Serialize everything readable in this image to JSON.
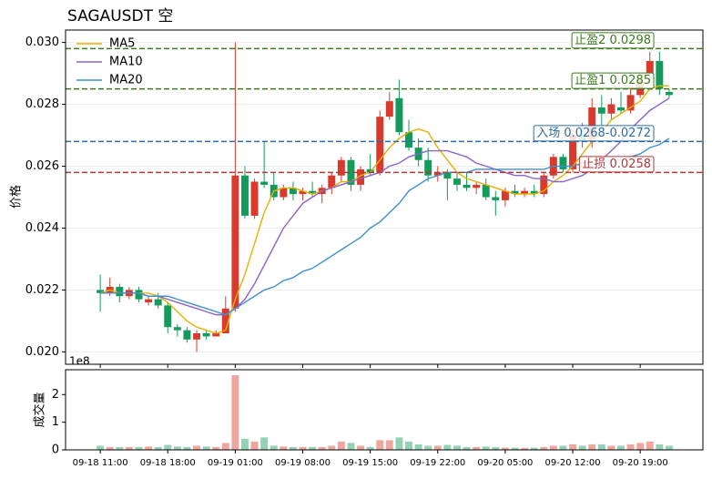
{
  "chart_data": [
    {
      "type": "candlestick",
      "title": "SAGAUSDT  空",
      "ylabel": "价格",
      "up_color": "#d93a2b",
      "down_color": "#149a5a",
      "grid": true,
      "legend": "upper left",
      "xlim": [
        -3.6,
        62.5
      ],
      "ylim": [
        0.0196,
        0.0304
      ],
      "yticks": [
        {
          "value": 0.02,
          "label": "0.020"
        },
        0.022,
        0.024,
        0.026,
        0.028,
        {
          "value": 0.03,
          "label": "0.030"
        }
      ],
      "open": [
        0.022,
        0.0219,
        0.0221,
        0.0218,
        0.022,
        0.0216,
        0.0217,
        0.0215,
        0.0208,
        0.0207,
        0.0204,
        0.0206,
        0.0205,
        0.0206,
        0.0214,
        0.0257,
        0.0244,
        0.0255,
        0.0254,
        0.025,
        0.0253,
        0.0251,
        0.0252,
        0.0251,
        0.0253,
        0.0257,
        0.0262,
        0.0254,
        0.0259,
        0.0258,
        0.0276,
        0.0282,
        0.0271,
        0.0266,
        0.0262,
        0.0257,
        0.0258,
        0.0256,
        0.0254,
        0.0253,
        0.0254,
        0.025,
        0.0249,
        0.0252,
        0.0251,
        0.0252,
        0.0251,
        0.0257,
        0.0263,
        0.0259,
        0.027,
        0.0268,
        0.0279,
        0.0277,
        0.0279,
        0.0278,
        0.0283,
        0.029,
        0.0294,
        0.0284
      ],
      "high": [
        0.0225,
        0.0224,
        0.0222,
        0.0221,
        0.0221,
        0.0218,
        0.0219,
        0.0216,
        0.0209,
        0.0208,
        0.0207,
        0.0207,
        0.0207,
        0.0218,
        0.03,
        0.026,
        0.0256,
        0.0268,
        0.0258,
        0.0254,
        0.0255,
        0.0253,
        0.0255,
        0.0254,
        0.0258,
        0.0263,
        0.0263,
        0.026,
        0.0264,
        0.0278,
        0.0284,
        0.0288,
        0.0275,
        0.0269,
        0.0266,
        0.026,
        0.0259,
        0.0258,
        0.0258,
        0.0255,
        0.0256,
        0.0252,
        0.0253,
        0.0254,
        0.0253,
        0.0254,
        0.0258,
        0.0264,
        0.0264,
        0.0272,
        0.0274,
        0.0282,
        0.0283,
        0.0282,
        0.0284,
        0.0285,
        0.0289,
        0.0297,
        0.0297,
        0.0285
      ],
      "low": [
        0.0213,
        0.0218,
        0.0216,
        0.0217,
        0.0216,
        0.0215,
        0.0214,
        0.0206,
        0.0205,
        0.0203,
        0.02,
        0.0204,
        0.0205,
        0.0206,
        0.0213,
        0.0243,
        0.0243,
        0.0253,
        0.0249,
        0.0249,
        0.0249,
        0.0249,
        0.025,
        0.0248,
        0.0251,
        0.0255,
        0.0252,
        0.0252,
        0.0257,
        0.0257,
        0.0275,
        0.027,
        0.0265,
        0.026,
        0.0255,
        0.0255,
        0.0249,
        0.0252,
        0.0252,
        0.0251,
        0.0249,
        0.0244,
        0.0247,
        0.025,
        0.025,
        0.025,
        0.025,
        0.0256,
        0.0258,
        0.0258,
        0.0266,
        0.0266,
        0.0273,
        0.0275,
        0.0277,
        0.0277,
        0.0282,
        0.0287,
        0.0283,
        0.0282
      ],
      "close": [
        0.0219,
        0.0221,
        0.0218,
        0.022,
        0.0217,
        0.0217,
        0.0215,
        0.0208,
        0.0207,
        0.0204,
        0.0206,
        0.0205,
        0.0206,
        0.0214,
        0.0257,
        0.0244,
        0.0255,
        0.0254,
        0.025,
        0.0253,
        0.0251,
        0.0252,
        0.0251,
        0.0253,
        0.0257,
        0.0262,
        0.0254,
        0.0259,
        0.0258,
        0.0276,
        0.0281,
        0.0271,
        0.0266,
        0.0262,
        0.0257,
        0.0258,
        0.0256,
        0.0254,
        0.0253,
        0.0254,
        0.025,
        0.0249,
        0.0252,
        0.0251,
        0.0252,
        0.0251,
        0.0257,
        0.0263,
        0.0259,
        0.027,
        0.0268,
        0.0279,
        0.0277,
        0.028,
        0.0278,
        0.0283,
        0.0288,
        0.0294,
        0.0285,
        0.0283
      ],
      "series": [
        {
          "name": "MA5",
          "color": "#e6b000",
          "values": [
            0.0219,
            0.022,
            0.0219,
            0.0219,
            0.0219,
            0.0219,
            0.0218,
            0.0216,
            0.0213,
            0.021,
            0.0208,
            0.0207,
            0.0206,
            0.0207,
            0.0217,
            0.0225,
            0.0235,
            0.0245,
            0.0252,
            0.0253,
            0.0253,
            0.0252,
            0.0251,
            0.0252,
            0.0253,
            0.0255,
            0.0255,
            0.0257,
            0.0258,
            0.0262,
            0.0266,
            0.0269,
            0.0271,
            0.0272,
            0.0271,
            0.0266,
            0.0262,
            0.0258,
            0.0256,
            0.0255,
            0.0254,
            0.0253,
            0.0252,
            0.0251,
            0.0251,
            0.0251,
            0.0252,
            0.0255,
            0.0257,
            0.026,
            0.0264,
            0.0268,
            0.0271,
            0.0275,
            0.0277,
            0.0279,
            0.0281,
            0.0285,
            0.0286,
            0.0286
          ]
        },
        {
          "name": "MA10",
          "color": "#8a63c9",
          "values": [
            0.0219,
            0.0219,
            0.0219,
            0.0219,
            0.0219,
            0.0218,
            0.0218,
            0.0217,
            0.0216,
            0.0215,
            0.0214,
            0.0213,
            0.0212,
            0.0212,
            0.0214,
            0.0217,
            0.0222,
            0.0228,
            0.0234,
            0.024,
            0.0244,
            0.0248,
            0.025,
            0.0252,
            0.0253,
            0.0254,
            0.0255,
            0.0256,
            0.0257,
            0.0258,
            0.026,
            0.0261,
            0.0263,
            0.0264,
            0.0265,
            0.0265,
            0.0265,
            0.0264,
            0.0263,
            0.0261,
            0.026,
            0.0259,
            0.0258,
            0.0257,
            0.0257,
            0.0256,
            0.0256,
            0.0255,
            0.0255,
            0.0256,
            0.0257,
            0.0259,
            0.0262,
            0.0265,
            0.0268,
            0.0272,
            0.0275,
            0.0278,
            0.028,
            0.0282
          ]
        },
        {
          "name": "MA20",
          "color": "#3f8fd2",
          "values": [
            0.0219,
            0.0219,
            0.0219,
            0.0219,
            0.0219,
            0.0218,
            0.0218,
            0.0218,
            0.0217,
            0.0216,
            0.0215,
            0.0214,
            0.0213,
            0.0212,
            0.0214,
            0.0216,
            0.0218,
            0.022,
            0.0221,
            0.0223,
            0.0224,
            0.0226,
            0.0227,
            0.0229,
            0.0231,
            0.0233,
            0.0235,
            0.0237,
            0.024,
            0.0242,
            0.0245,
            0.0248,
            0.0252,
            0.0254,
            0.0256,
            0.0257,
            0.0258,
            0.0258,
            0.0258,
            0.0259,
            0.0259,
            0.0259,
            0.0259,
            0.0259,
            0.0259,
            0.0259,
            0.0259,
            0.026,
            0.026,
            0.026,
            0.0261,
            0.0261,
            0.0261,
            0.0262,
            0.0262,
            0.0263,
            0.0264,
            0.0266,
            0.0267,
            0.0269
          ]
        }
      ],
      "levels": [
        {
          "label": "止盈2 0.0298",
          "value": 0.0298,
          "color": "#3d7a1f"
        },
        {
          "label": "止盈1 0.0285",
          "value": 0.0285,
          "color": "#3d7a1f"
        },
        {
          "label": "入场 0.0268-0.0272",
          "value": 0.0268,
          "color": "#2e6da4"
        },
        {
          "label": "止损 0.0258",
          "value": 0.0258,
          "color": "#b03a3a"
        }
      ]
    },
    {
      "type": "bar",
      "ylabel": "成交量",
      "offset_label": "1e8",
      "xlim": [
        -3.6,
        62.5
      ],
      "ylim": [
        0,
        2.9
      ],
      "yticks": [
        0,
        1,
        2
      ],
      "categories": [
        "09-18 11:00",
        null,
        null,
        null,
        null,
        null,
        null,
        "09-18 18:00",
        null,
        null,
        null,
        null,
        null,
        null,
        "09-19 01:00",
        null,
        null,
        null,
        null,
        null,
        null,
        "09-19 08:00",
        null,
        null,
        null,
        null,
        null,
        null,
        "09-19 15:00",
        null,
        null,
        null,
        null,
        null,
        null,
        "09-19 22:00",
        null,
        null,
        null,
        null,
        null,
        null,
        "09-20 05:00",
        null,
        null,
        null,
        null,
        null,
        null,
        "09-20 12:00",
        null,
        null,
        null,
        null,
        null,
        null,
        "09-20 19:00",
        null,
        null,
        null
      ],
      "values": [
        0.15,
        0.1,
        0.1,
        0.1,
        0.1,
        0.12,
        0.1,
        0.18,
        0.12,
        0.1,
        0.15,
        0.12,
        0.1,
        0.25,
        2.7,
        0.4,
        0.3,
        0.45,
        0.15,
        0.12,
        0.1,
        0.1,
        0.1,
        0.1,
        0.15,
        0.3,
        0.25,
        0.15,
        0.1,
        0.35,
        0.35,
        0.45,
        0.3,
        0.2,
        0.15,
        0.15,
        0.18,
        0.15,
        0.1,
        0.1,
        0.12,
        0.1,
        0.08,
        0.08,
        0.07,
        0.08,
        0.1,
        0.15,
        0.15,
        0.2,
        0.15,
        0.2,
        0.2,
        0.15,
        0.15,
        0.2,
        0.25,
        0.3,
        0.2,
        0.15
      ]
    }
  ]
}
